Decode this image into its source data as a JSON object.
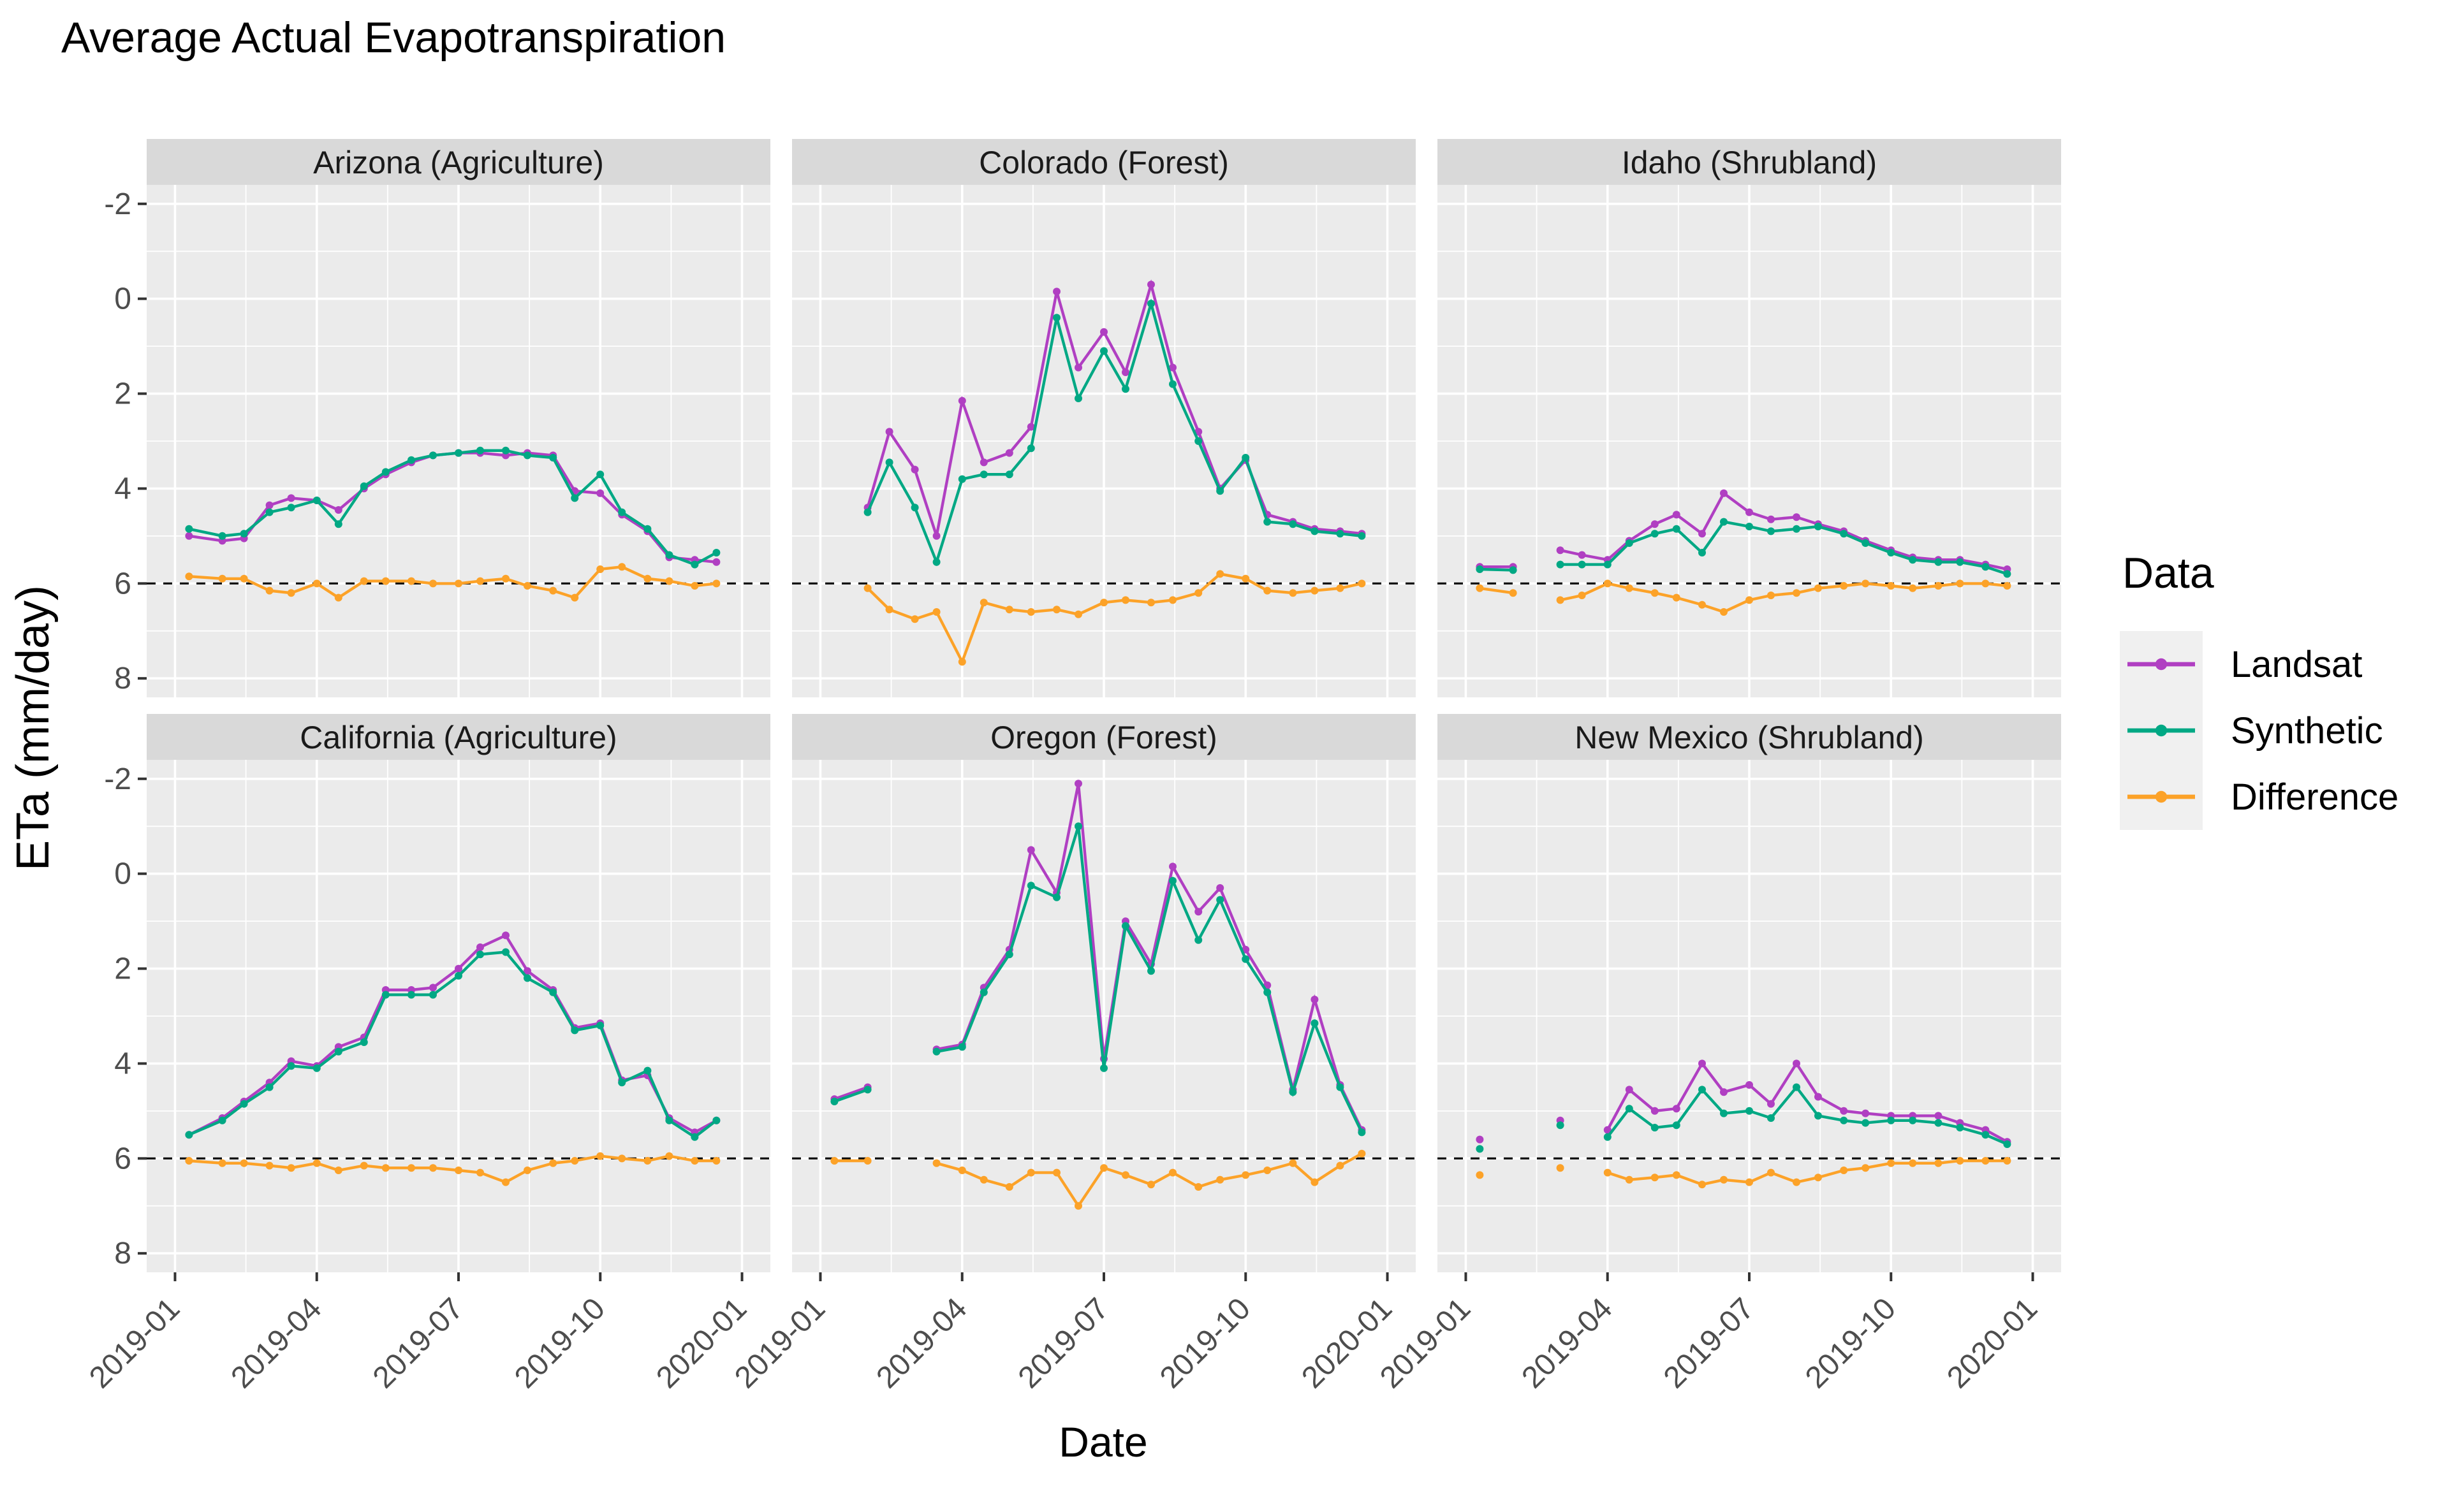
{
  "title": "Average Actual Evapotranspiration",
  "axes": {
    "x_label": "Date",
    "y_label": "ETa (mm/day)",
    "x_tick_labels": [
      "2019-01",
      "2019-04",
      "2019-07",
      "2019-10",
      "2020-01"
    ],
    "y_tick_labels": [
      "8",
      "6",
      "4",
      "2",
      "0",
      "-2"
    ]
  },
  "legend": {
    "title": "Data",
    "position": "right",
    "items": [
      {
        "id": "landsat",
        "label": "Landsat",
        "color": "#B03FC2"
      },
      {
        "id": "synthetic",
        "label": "Synthetic",
        "color": "#00A884"
      },
      {
        "id": "difference",
        "label": "Difference",
        "color": "#FCA228"
      }
    ]
  },
  "style": {
    "panel_bg": "#EBEBEB",
    "strip_bg": "#D9D9D9",
    "grid_color": "#FFFFFF",
    "tick_text_color": "#4D4D4D",
    "tick_mark_color": "#333333",
    "strip_text_color": "#1A1A1A",
    "zero_line_color": "#000000",
    "legend_key_bg": "#F0F0F0"
  },
  "chart_data": {
    "type": "line",
    "title": "Average Actual Evapotranspiration",
    "xlabel": "Date",
    "ylabel": "ETa (mm/day)",
    "ylim": [
      -2,
      8
    ],
    "y_breaks": [
      -2,
      0,
      2,
      4,
      6,
      8
    ],
    "x_breaks": [
      "2019-01-01",
      "2019-04-01",
      "2019-07-01",
      "2019-10-01",
      "2020-01-01"
    ],
    "x_break_labels": [
      "2019-01",
      "2019-04",
      "2019-07",
      "2019-10",
      "2020-01"
    ],
    "grid": true,
    "zero_reference_line": "dashed",
    "legend_position": "right",
    "series_names": [
      "Landsat",
      "Synthetic",
      "Difference"
    ],
    "dates": [
      "2019-01-10",
      "2019-02-01",
      "2019-02-15",
      "2019-03-01",
      "2019-03-15",
      "2019-04-01",
      "2019-04-15",
      "2019-05-01",
      "2019-05-15",
      "2019-06-01",
      "2019-06-15",
      "2019-07-01",
      "2019-07-15",
      "2019-08-01",
      "2019-08-15",
      "2019-09-01",
      "2019-09-15",
      "2019-10-01",
      "2019-10-15",
      "2019-11-01",
      "2019-11-15",
      "2019-12-01",
      "2019-12-15"
    ],
    "facets": [
      {
        "title": "Arizona (Agriculture)",
        "row": 1,
        "col": 1,
        "landsat": [
          1.0,
          0.9,
          0.95,
          1.65,
          1.8,
          1.75,
          1.55,
          2.0,
          2.3,
          2.55,
          2.7,
          2.75,
          2.75,
          2.7,
          2.75,
          2.7,
          1.95,
          1.9,
          1.45,
          1.1,
          0.55,
          0.5,
          0.45
        ],
        "synthetic": [
          1.15,
          1.0,
          1.05,
          1.5,
          1.6,
          1.75,
          1.25,
          2.05,
          2.35,
          2.6,
          2.7,
          2.75,
          2.8,
          2.8,
          2.7,
          2.65,
          1.8,
          2.3,
          1.5,
          1.15,
          0.6,
          0.4,
          0.65
        ],
        "difference": [
          0.15,
          0.1,
          0.1,
          -0.15,
          -0.2,
          0.0,
          -0.3,
          0.05,
          0.05,
          0.05,
          0.0,
          0.0,
          0.05,
          0.1,
          -0.05,
          -0.15,
          -0.3,
          0.3,
          0.35,
          0.1,
          0.05,
          -0.05,
          0.0
        ]
      },
      {
        "title": "Colorado (Forest)",
        "row": 1,
        "col": 2,
        "landsat": [
          null,
          1.6,
          3.2,
          2.4,
          1.0,
          3.85,
          2.55,
          2.75,
          3.3,
          6.15,
          4.55,
          5.3,
          4.45,
          6.3,
          4.55,
          3.2,
          2.0,
          2.6,
          1.45,
          1.3,
          1.15,
          1.1,
          1.05
        ],
        "synthetic": [
          null,
          1.5,
          2.55,
          1.6,
          0.45,
          2.2,
          2.3,
          2.3,
          2.85,
          5.6,
          3.9,
          4.9,
          4.1,
          5.9,
          4.2,
          3.0,
          1.95,
          2.65,
          1.3,
          1.25,
          1.1,
          1.05,
          1.0
        ],
        "difference": [
          null,
          -0.1,
          -0.55,
          -0.75,
          -0.6,
          -1.65,
          -0.4,
          -0.55,
          -0.6,
          -0.55,
          -0.65,
          -0.4,
          -0.35,
          -0.4,
          -0.35,
          -0.2,
          0.2,
          0.1,
          -0.15,
          -0.2,
          -0.15,
          -0.1,
          0.0
        ]
      },
      {
        "title": "Idaho (Shrubland)",
        "row": 1,
        "col": 3,
        "landsat": [
          0.35,
          0.35,
          null,
          0.7,
          0.6,
          0.5,
          0.9,
          1.25,
          1.45,
          1.05,
          1.9,
          1.5,
          1.35,
          1.4,
          1.25,
          1.1,
          0.9,
          0.7,
          0.55,
          0.5,
          0.5,
          0.4,
          0.3
        ],
        "synthetic": [
          0.3,
          0.28,
          null,
          0.4,
          0.4,
          0.4,
          0.85,
          1.05,
          1.15,
          0.65,
          1.3,
          1.2,
          1.1,
          1.15,
          1.2,
          1.05,
          0.85,
          0.65,
          0.5,
          0.45,
          0.45,
          0.35,
          0.2
        ],
        "difference": [
          -0.1,
          -0.2,
          null,
          -0.35,
          -0.25,
          0.0,
          -0.1,
          -0.2,
          -0.3,
          -0.45,
          -0.6,
          -0.35,
          -0.25,
          -0.2,
          -0.1,
          -0.05,
          0.0,
          -0.05,
          -0.1,
          -0.05,
          0.0,
          0.0,
          -0.05
        ]
      },
      {
        "title": "California (Agriculture)",
        "row": 2,
        "col": 1,
        "landsat": [
          0.5,
          0.85,
          1.2,
          1.6,
          2.05,
          1.95,
          2.35,
          2.55,
          3.55,
          3.55,
          3.6,
          4.0,
          4.45,
          4.7,
          3.95,
          3.55,
          2.75,
          2.85,
          1.65,
          1.75,
          0.85,
          0.55,
          0.8
        ],
        "synthetic": [
          0.5,
          0.8,
          1.15,
          1.5,
          1.95,
          1.9,
          2.25,
          2.45,
          3.45,
          3.45,
          3.45,
          3.85,
          4.3,
          4.35,
          3.8,
          3.5,
          2.7,
          2.8,
          1.6,
          1.85,
          0.8,
          0.45,
          0.8
        ],
        "difference": [
          -0.05,
          -0.1,
          -0.1,
          -0.15,
          -0.2,
          -0.1,
          -0.25,
          -0.15,
          -0.2,
          -0.2,
          -0.2,
          -0.25,
          -0.3,
          -0.5,
          -0.25,
          -0.1,
          -0.05,
          0.05,
          0.0,
          -0.05,
          0.05,
          -0.05,
          -0.05
        ]
      },
      {
        "title": "Oregon (Forest)",
        "row": 2,
        "col": 2,
        "landsat": [
          1.25,
          1.5,
          null,
          null,
          2.3,
          2.4,
          3.6,
          4.4,
          6.5,
          5.6,
          7.9,
          2.1,
          5.0,
          4.1,
          6.15,
          5.2,
          5.7,
          4.4,
          3.65,
          1.45,
          3.35,
          1.55,
          0.6
        ],
        "synthetic": [
          1.2,
          1.45,
          null,
          null,
          2.25,
          2.35,
          3.5,
          4.3,
          5.75,
          5.5,
          7.0,
          1.9,
          4.9,
          3.95,
          5.85,
          4.6,
          5.45,
          4.2,
          3.5,
          1.4,
          2.85,
          1.5,
          0.55
        ],
        "difference": [
          -0.05,
          -0.05,
          null,
          null,
          -0.1,
          -0.25,
          -0.45,
          -0.6,
          -0.3,
          -0.3,
          -1.0,
          -0.2,
          -0.35,
          -0.55,
          -0.3,
          -0.6,
          -0.45,
          -0.35,
          -0.25,
          -0.1,
          -0.5,
          -0.15,
          0.1
        ]
      },
      {
        "title": "New Mexico (Shrubland)",
        "row": 2,
        "col": 3,
        "landsat": [
          0.4,
          null,
          null,
          0.8,
          null,
          0.6,
          1.45,
          1.0,
          1.05,
          2.0,
          1.4,
          1.55,
          1.15,
          2.0,
          1.3,
          1.0,
          0.95,
          0.9,
          0.9,
          0.9,
          0.75,
          0.6,
          0.35
        ],
        "synthetic": [
          0.2,
          null,
          null,
          0.7,
          null,
          0.45,
          1.05,
          0.65,
          0.7,
          1.45,
          0.95,
          1.0,
          0.85,
          1.5,
          0.9,
          0.8,
          0.75,
          0.8,
          0.8,
          0.75,
          0.65,
          0.5,
          0.3
        ],
        "difference": [
          -0.35,
          null,
          null,
          -0.2,
          null,
          -0.3,
          -0.45,
          -0.4,
          -0.35,
          -0.55,
          -0.45,
          -0.5,
          -0.3,
          -0.5,
          -0.4,
          -0.25,
          -0.2,
          -0.1,
          -0.1,
          -0.1,
          -0.05,
          -0.05,
          -0.05
        ]
      }
    ]
  }
}
